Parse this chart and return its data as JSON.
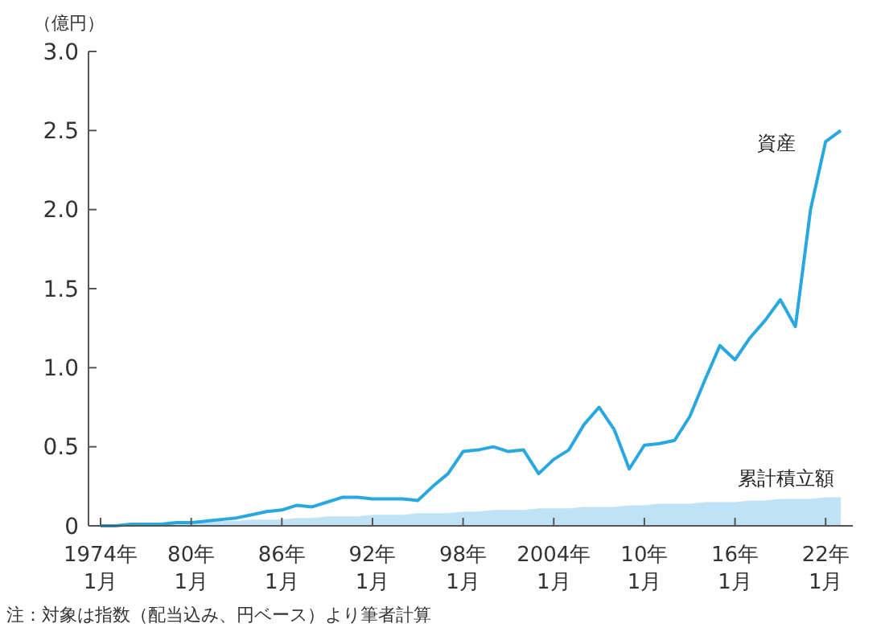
{
  "chart_data": {
    "type": "line",
    "ylabel": "（億円）",
    "categories": [
      "1974年\n1月",
      null,
      null,
      null,
      null,
      null,
      "80年\n1月",
      null,
      null,
      null,
      null,
      null,
      "86年\n1月",
      null,
      null,
      null,
      null,
      null,
      "92年\n1月",
      null,
      null,
      null,
      null,
      null,
      "98年\n1月",
      null,
      null,
      null,
      null,
      null,
      "2004年\n1月",
      null,
      null,
      null,
      null,
      null,
      "10年\n1月",
      null,
      null,
      null,
      null,
      null,
      "16年\n1月",
      null,
      null,
      null,
      null,
      null,
      "22年\n1月",
      null
    ],
    "series": [
      {
        "name": "資産",
        "color": "#29a8e0",
        "values": [
          0,
          0,
          0.01,
          0.01,
          0.01,
          0.02,
          0.02,
          0.03,
          0.04,
          0.05,
          0.07,
          0.09,
          0.1,
          0.13,
          0.12,
          0.15,
          0.18,
          0.18,
          0.17,
          0.17,
          0.17,
          0.16,
          0.25,
          0.33,
          0.47,
          0.48,
          0.5,
          0.47,
          0.48,
          0.33,
          0.42,
          0.48,
          0.64,
          0.75,
          0.61,
          0.36,
          0.51,
          0.52,
          0.54,
          0.69,
          0.92,
          1.14,
          1.05,
          1.19,
          1.3,
          1.43,
          1.26,
          2.0,
          2.43,
          2.5
        ]
      },
      {
        "name": "累計積立額",
        "type": "area",
        "color": "#bfe3f5",
        "values": [
          0,
          0,
          0.01,
          0.01,
          0.01,
          0.02,
          0.02,
          0.03,
          0.03,
          0.03,
          0.04,
          0.04,
          0.04,
          0.05,
          0.05,
          0.06,
          0.06,
          0.06,
          0.07,
          0.07,
          0.07,
          0.08,
          0.08,
          0.08,
          0.09,
          0.09,
          0.1,
          0.1,
          0.1,
          0.11,
          0.11,
          0.11,
          0.12,
          0.12,
          0.12,
          0.13,
          0.13,
          0.14,
          0.14,
          0.14,
          0.15,
          0.15,
          0.15,
          0.16,
          0.16,
          0.17,
          0.17,
          0.17,
          0.18,
          0.18
        ]
      }
    ],
    "ylim": [
      0,
      3
    ],
    "yticks": [
      0,
      {
        "value": 0.5,
        "label": "0.5"
      },
      {
        "value": 1,
        "label": "1.0"
      },
      {
        "value": 1.5,
        "label": "1.5"
      },
      {
        "value": 2,
        "label": "2.0"
      },
      {
        "value": 2.5,
        "label": "2.5"
      },
      {
        "value": 3,
        "label": "3.0"
      }
    ],
    "grid": false,
    "legend": false,
    "marker": "none",
    "line_style": "solid",
    "annotations": [
      "注：対象は指数（配当込み、円ベース）より筆者計算"
    ]
  }
}
